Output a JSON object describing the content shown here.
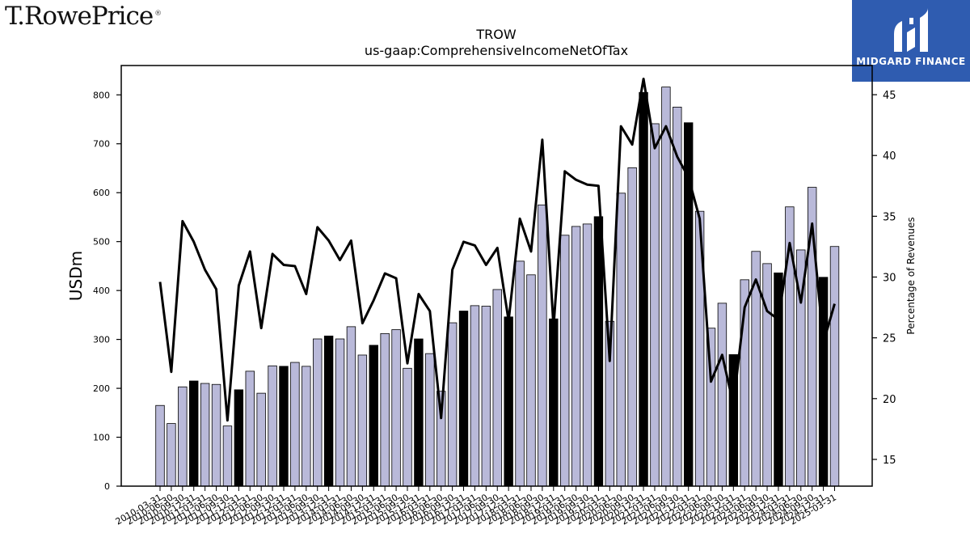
{
  "brand": {
    "left_logo": "T.RowePrice",
    "left_logo_mark": "®",
    "right_logo": "MIDGARD FINANCE"
  },
  "chart_data": {
    "type": "bar",
    "title": "TROW",
    "subtitle": "us-gaap:ComprehensiveIncomeNetOfTax",
    "ylabel": "USDm",
    "y2label": "Percentage of Revenues",
    "ylim": [
      0,
      860
    ],
    "y2lim": [
      12.8,
      47.4
    ],
    "yticks": [
      0,
      100,
      200,
      300,
      400,
      500,
      600,
      700,
      800
    ],
    "y2ticks": [
      15,
      20,
      25,
      30,
      35,
      40,
      45
    ],
    "colors": {
      "bar": "#b9b9d9",
      "highlight": "#000000",
      "line": "#000000"
    },
    "categories": [
      "2010-03-31",
      "2010-06-30",
      "2010-09-30",
      "2010-12-31",
      "2011-03-31",
      "2011-06-30",
      "2011-09-30",
      "2011-12-31",
      "2012-03-31",
      "2012-06-30",
      "2012-09-30",
      "2012-12-31",
      "2013-03-31",
      "2013-06-30",
      "2013-09-30",
      "2013-12-31",
      "2014-03-31",
      "2014-06-30",
      "2014-09-30",
      "2014-12-31",
      "2015-03-31",
      "2015-06-30",
      "2015-09-30",
      "2015-12-31",
      "2016-03-31",
      "2016-06-30",
      "2016-09-30",
      "2016-12-31",
      "2017-03-31",
      "2017-06-30",
      "2017-09-30",
      "2017-12-31",
      "2018-03-31",
      "2018-06-30",
      "2018-09-30",
      "2018-12-31",
      "2019-03-31",
      "2019-06-30",
      "2019-09-30",
      "2019-12-31",
      "2020-03-31",
      "2020-06-30",
      "2020-09-30",
      "2020-12-31",
      "2021-03-31",
      "2021-06-30",
      "2021-09-30",
      "2021-12-31",
      "2022-03-31",
      "2022-06-30",
      "2022-09-30",
      "2022-12-31",
      "2023-03-31",
      "2023-06-30",
      "2023-09-30",
      "2023-12-31",
      "2024-03-31",
      "2024-06-30",
      "2024-09-30",
      "2024-12-31",
      "2025-03-31"
    ],
    "series": [
      {
        "name": "",
        "kind": "bar",
        "values": [
          165,
          128,
          203,
          215,
          210,
          208,
          123,
          197,
          235,
          190,
          246,
          245,
          253,
          245,
          301,
          307,
          301,
          326,
          268,
          288,
          312,
          320,
          241,
          301,
          271,
          194,
          334,
          358,
          369,
          368,
          402,
          346,
          460,
          432,
          575,
          342,
          513,
          531,
          536,
          551,
          337,
          599,
          651,
          805,
          741,
          816,
          775,
          743,
          562,
          323,
          374,
          269,
          422,
          480,
          455,
          436,
          571,
          483,
          611,
          427,
          490
        ],
        "highlight": [
          false,
          false,
          false,
          true,
          false,
          false,
          false,
          true,
          false,
          false,
          false,
          true,
          false,
          false,
          false,
          true,
          false,
          false,
          false,
          true,
          false,
          false,
          false,
          true,
          false,
          false,
          false,
          true,
          false,
          false,
          false,
          true,
          false,
          false,
          false,
          true,
          false,
          false,
          false,
          true,
          false,
          false,
          false,
          true,
          false,
          false,
          false,
          true,
          false,
          false,
          false,
          true,
          false,
          false,
          false,
          true,
          false,
          false,
          false,
          true,
          false
        ]
      },
      {
        "name": "",
        "kind": "line",
        "axis": "right",
        "values": [
          29.6,
          22.2,
          34.6,
          32.9,
          30.6,
          29.0,
          18.2,
          29.3,
          32.1,
          25.8,
          31.9,
          31.0,
          30.9,
          28.6,
          34.1,
          33.0,
          31.4,
          33.0,
          26.2,
          28.1,
          30.3,
          29.9,
          22.9,
          28.6,
          27.2,
          18.4,
          30.6,
          32.9,
          32.6,
          31.0,
          32.4,
          26.4,
          34.8,
          32.1,
          41.3,
          25.9,
          38.7,
          38.0,
          37.6,
          37.5,
          23.1,
          42.4,
          40.9,
          46.3,
          40.6,
          42.4,
          39.9,
          38.2,
          34.8,
          21.4,
          23.6,
          19.5,
          27.5,
          29.8,
          27.2,
          26.5,
          32.8,
          27.9,
          34.4,
          24.6,
          27.8
        ]
      }
    ]
  }
}
